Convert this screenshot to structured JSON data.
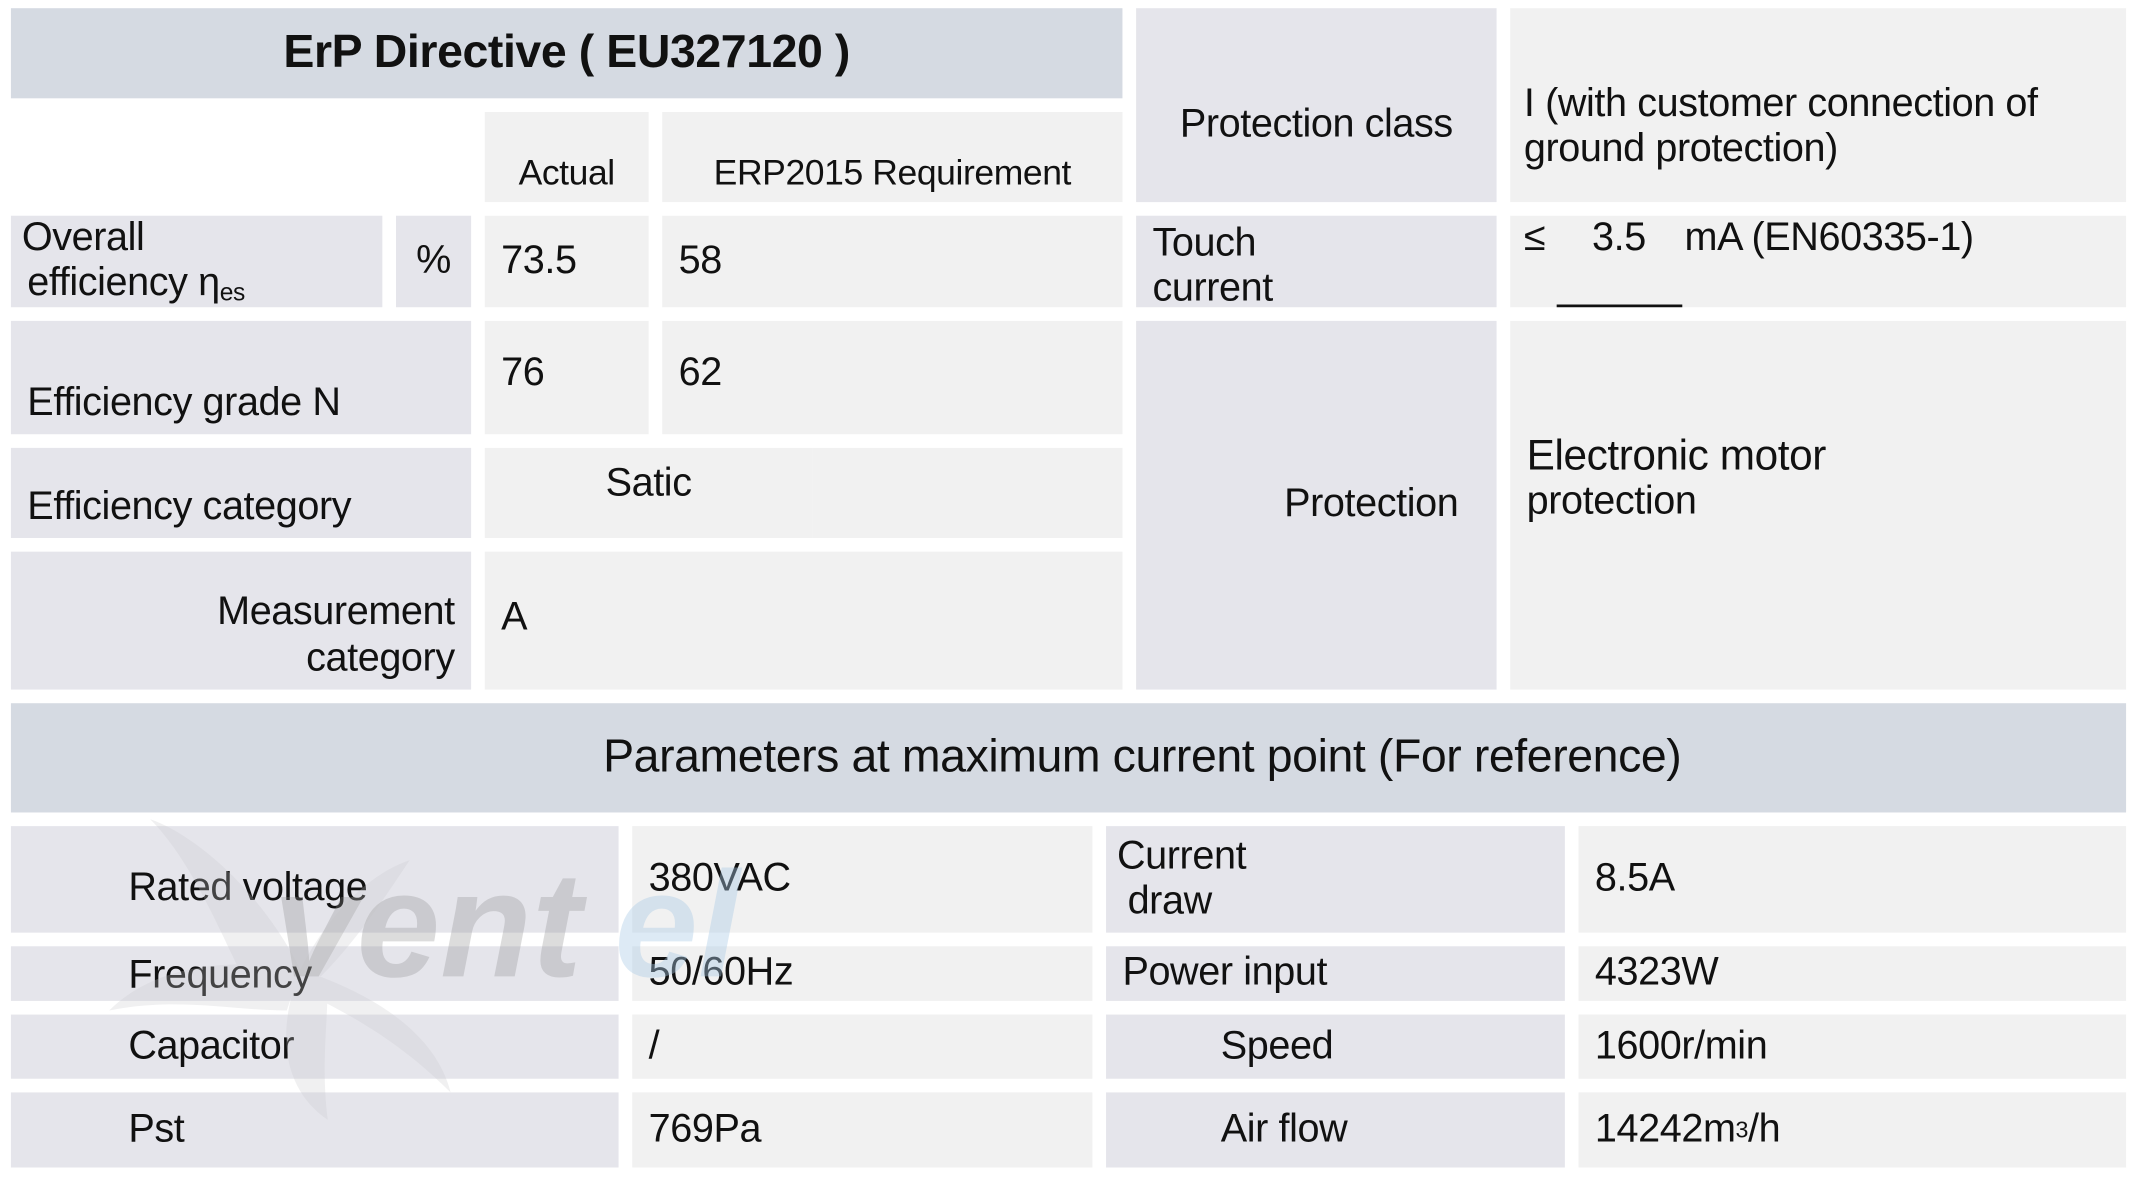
{
  "erp": {
    "title": "ErP Directive ( EU327120 )",
    "col_actual": "Actual",
    "col_requirement": "ERP2015 Requirement",
    "rows": [
      {
        "label_line1": "Overall",
        "label_line2": "efficiency η",
        "label_sub": "es",
        "unit": "%",
        "actual": "73.5",
        "requirement": "58"
      },
      {
        "label": "Efficiency grade N",
        "actual": "76",
        "requirement": "62"
      },
      {
        "label": "Efficiency category",
        "value": "Satic"
      },
      {
        "label_line1": "Measurement",
        "label_line2": "category",
        "value": "A"
      }
    ]
  },
  "protection": {
    "class_label": "Protection class",
    "class_value_line1": "I (with customer connection of",
    "class_value_line2": "ground protection)",
    "touch_label_line1": "Touch",
    "touch_label_line2": "current",
    "touch_prefix": "≤",
    "touch_value": "3.5",
    "touch_suffix": "mA (EN60335-1)",
    "protection_label": "Protection",
    "protection_value_line1": "Electronic motor",
    "protection_value_line2": "protection"
  },
  "params": {
    "title": "Parameters at maximum current point (For reference)",
    "rows": [
      {
        "label": "Rated voltage",
        "value": "380VAC",
        "label2_line1": "Current",
        "label2_line2": " draw",
        "value2": "8.5A"
      },
      {
        "label": "Frequency",
        "value": "50/60Hz",
        "label2": "Power input",
        "value2": "4323W"
      },
      {
        "label": "Capacitor",
        "value": "/",
        "label2": "Speed",
        "value2": "1600r/min"
      },
      {
        "label": "Pst",
        "value": "769Pa",
        "label2": "Air flow",
        "value2": "14242m",
        "value2_sup": "3",
        "value2_suffix": "/h"
      }
    ]
  },
  "watermark": {
    "text": "ventel",
    "colors": {
      "gray": "#9a9a9a",
      "blue": "#a9cbe6"
    }
  }
}
